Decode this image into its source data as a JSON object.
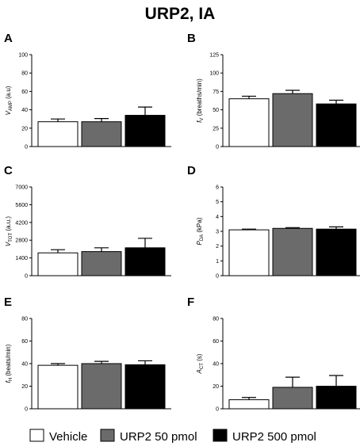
{
  "title": "URP2,  IA",
  "legend": [
    {
      "label": "Vehicle",
      "color": "#ffffff"
    },
    {
      "label": "URP2 50 pmol",
      "color": "#6b6b6b"
    },
    {
      "label": "URP2 500 pmol",
      "color": "#000000"
    }
  ],
  "chart_data": [
    {
      "panel": "A",
      "type": "bar",
      "ylabel_main": "V",
      "ylabel_sub": "AMP",
      "ylabel_unit": " (a.u)",
      "categories": [
        "Vehicle",
        "URP2 50 pmol",
        "URP2 500 pmol"
      ],
      "values": [
        27,
        27,
        34
      ],
      "errors": [
        3,
        3.5,
        9
      ],
      "ylim": [
        0,
        100
      ],
      "yticks": [
        0,
        20,
        40,
        60,
        80,
        100
      ]
    },
    {
      "panel": "B",
      "type": "bar",
      "ylabel_main": "f",
      "ylabel_sub": "V",
      "ylabel_unit": " (breaths/min)",
      "categories": [
        "Vehicle",
        "URP2 50 pmol",
        "URP2 500 pmol"
      ],
      "values": [
        65,
        72,
        58
      ],
      "errors": [
        3.5,
        4.5,
        5
      ],
      "ylim": [
        0,
        125
      ],
      "yticks": [
        0,
        25,
        50,
        75,
        100,
        125
      ]
    },
    {
      "panel": "C",
      "type": "bar",
      "ylabel_main": "V",
      "ylabel_sub": "TOT",
      "ylabel_unit": " (a.u.)",
      "categories": [
        "Vehicle",
        "URP2 50 pmol",
        "URP2 500 pmol"
      ],
      "values": [
        1800,
        1900,
        2200
      ],
      "errors": [
        250,
        300,
        750
      ],
      "ylim": [
        0,
        7000
      ],
      "yticks": [
        0,
        1400,
        2800,
        4200,
        5600,
        7000
      ]
    },
    {
      "panel": "D",
      "type": "bar",
      "ylabel_main": "P",
      "ylabel_sub": "DA",
      "ylabel_unit": " (kPa)",
      "categories": [
        "Vehicle",
        "URP2 50 pmol",
        "URP2 500 pmol"
      ],
      "values": [
        3.1,
        3.2,
        3.15
      ],
      "errors": [
        0.05,
        0.05,
        0.15
      ],
      "ylim": [
        0,
        6
      ],
      "yticks": [
        0,
        1,
        2,
        3,
        4,
        5,
        6
      ]
    },
    {
      "panel": "E",
      "type": "bar",
      "ylabel_main": "f",
      "ylabel_sub": "H",
      "ylabel_unit": " (beats/min)",
      "categories": [
        "Vehicle",
        "URP2 50 pmol",
        "URP2 500 pmol"
      ],
      "values": [
        38.5,
        40,
        39
      ],
      "errors": [
        1.5,
        2,
        3.5
      ],
      "ylim": [
        0,
        80
      ],
      "yticks": [
        0,
        20,
        40,
        60,
        80
      ]
    },
    {
      "panel": "F",
      "type": "bar",
      "ylabel_main": "A",
      "ylabel_sub": "CT",
      "ylabel_unit": " (s)",
      "categories": [
        "Vehicle",
        "URP2 50 pmol",
        "URP2 500 pmol"
      ],
      "values": [
        8,
        19,
        20
      ],
      "errors": [
        2,
        9,
        9.5
      ],
      "ylim": [
        0,
        80
      ],
      "yticks": [
        0,
        20,
        40,
        60,
        80
      ]
    }
  ]
}
